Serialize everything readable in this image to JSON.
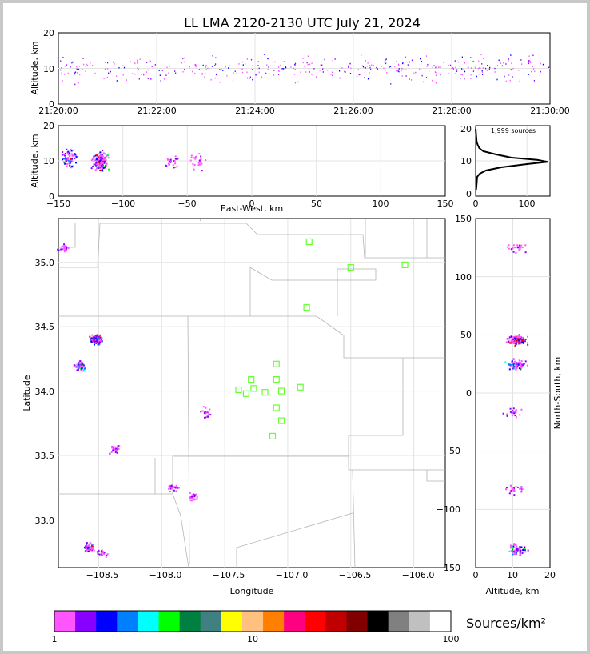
{
  "title": "LL LMA 2120-2130 UTC July 21, 2024",
  "colorbar": {
    "label": "Sources/km²",
    "tick_labels": [
      "1",
      "10",
      "100"
    ],
    "colors": [
      "#ff55ff",
      "#8800ff",
      "#0000ff",
      "#0080ff",
      "#00ffff",
      "#00ff00",
      "#008040",
      "#408080",
      "#ffff00",
      "#ffc080",
      "#ff8000",
      "#ff0080",
      "#ff0000",
      "#c00000",
      "#800000",
      "#000000",
      "#808080",
      "#c0c0c0",
      "#ffffff"
    ]
  },
  "chart_data": [
    {
      "id": "time_series",
      "type": "scatter",
      "xlabel": "",
      "ylabel": "Altitude, km",
      "x_ticks": [
        "21:20:00",
        "21:22:00",
        "21:24:00",
        "21:26:00",
        "21:28:00",
        "21:30:00"
      ],
      "y_ticks": [
        "0",
        "10",
        "20"
      ],
      "xlim": [
        "21:20:00",
        "21:30:00"
      ],
      "ylim": [
        0,
        20
      ],
      "grid": true
    },
    {
      "id": "east_west",
      "type": "heatmap",
      "xlabel": "East-West, km",
      "ylabel": "Altitude, km",
      "x_ticks": [
        "−150",
        "−100",
        "−50",
        "0",
        "50",
        "100",
        "150"
      ],
      "y_ticks": [
        "0",
        "10",
        "20"
      ],
      "xlim": [
        -150,
        150
      ],
      "ylim": [
        0,
        20
      ],
      "grid": true,
      "clusters": [
        {
          "x": -142,
          "z": 11,
          "sources": "moderate"
        },
        {
          "x": -118,
          "z": 10,
          "sources": "high"
        },
        {
          "x": -62,
          "z": 10,
          "sources": "low"
        },
        {
          "x": -42,
          "z": 10,
          "sources": "low"
        }
      ]
    },
    {
      "id": "altitude_histogram",
      "type": "line",
      "annotation": "1,999 sources",
      "x_ticks": [
        "0",
        "100"
      ],
      "y_ticks": [
        "0",
        "10",
        "20"
      ],
      "xlim": [
        0,
        145
      ],
      "ylim": [
        -1,
        21
      ],
      "profile": [
        {
          "z": 1,
          "n": 1
        },
        {
          "z": 3,
          "n": 2
        },
        {
          "z": 5,
          "n": 3
        },
        {
          "z": 6,
          "n": 8
        },
        {
          "z": 7,
          "n": 20
        },
        {
          "z": 8,
          "n": 50
        },
        {
          "z": 9,
          "n": 100
        },
        {
          "z": 9.7,
          "n": 140
        },
        {
          "z": 10.3,
          "n": 120
        },
        {
          "z": 11,
          "n": 70
        },
        {
          "z": 12,
          "n": 40
        },
        {
          "z": 13,
          "n": 15
        },
        {
          "z": 14,
          "n": 7
        },
        {
          "z": 15,
          "n": 4
        },
        {
          "z": 16,
          "n": 2
        },
        {
          "z": 18,
          "n": 1
        },
        {
          "z": 20,
          "n": 0
        }
      ]
    },
    {
      "id": "plan_view",
      "type": "scatter",
      "xlabel": "Longitude",
      "ylabel": "Latitude",
      "x_ticks": [
        "−108.5",
        "−108.0",
        "−107.5",
        "−107.0",
        "−106.5",
        "−106.0"
      ],
      "y_ticks": [
        "33.0",
        "33.5",
        "34.0",
        "34.5",
        "35.0"
      ],
      "xlim": [
        -108.82,
        -105.75
      ],
      "ylim": [
        32.63,
        35.34
      ],
      "grid": true,
      "stations": [
        {
          "lon": -106.83,
          "lat": 35.16
        },
        {
          "lon": -106.5,
          "lat": 34.96
        },
        {
          "lon": -106.07,
          "lat": 34.98
        },
        {
          "lon": -106.85,
          "lat": 34.65
        },
        {
          "lon": -107.09,
          "lat": 34.21
        },
        {
          "lon": -107.29,
          "lat": 34.09
        },
        {
          "lon": -107.09,
          "lat": 34.09
        },
        {
          "lon": -107.39,
          "lat": 34.01
        },
        {
          "lon": -107.33,
          "lat": 33.98
        },
        {
          "lon": -107.27,
          "lat": 34.02
        },
        {
          "lon": -107.18,
          "lat": 33.99
        },
        {
          "lon": -107.05,
          "lat": 34.0
        },
        {
          "lon": -106.9,
          "lat": 34.03
        },
        {
          "lon": -107.09,
          "lat": 33.87
        },
        {
          "lon": -107.05,
          "lat": 33.77
        },
        {
          "lon": -107.12,
          "lat": 33.65
        }
      ],
      "clusters": [
        {
          "lon": -108.53,
          "lat": 34.41,
          "sources": "high"
        },
        {
          "lon": -108.66,
          "lat": 34.2,
          "sources": "moderate"
        },
        {
          "lon": -108.78,
          "lat": 35.12,
          "sources": "low"
        },
        {
          "lon": -108.58,
          "lat": 32.79,
          "sources": "moderate"
        },
        {
          "lon": -108.48,
          "lat": 32.75,
          "sources": "low"
        },
        {
          "lon": -107.91,
          "lat": 33.26,
          "sources": "low"
        },
        {
          "lon": -107.76,
          "lat": 33.18,
          "sources": "low"
        },
        {
          "lon": -107.65,
          "lat": 33.84,
          "sources": "low"
        },
        {
          "lon": -108.37,
          "lat": 33.55,
          "sources": "low"
        }
      ]
    },
    {
      "id": "north_south",
      "type": "heatmap",
      "xlabel": "Altitude, km",
      "ylabel": "North-South, km",
      "x_ticks": [
        "0",
        "10",
        "20"
      ],
      "y_ticks": [
        "−150",
        "−100",
        "−50",
        "0",
        "50",
        "100",
        "150"
      ],
      "xlim": [
        0,
        20
      ],
      "ylim": [
        -150,
        150
      ],
      "grid": true,
      "clusters": [
        {
          "z": 11,
          "y": 46,
          "sources": "high"
        },
        {
          "z": 11,
          "y": 25,
          "sources": "moderate"
        },
        {
          "z": 11,
          "y": 125,
          "sources": "low"
        },
        {
          "z": 10,
          "y": -17,
          "sources": "low"
        },
        {
          "z": 10,
          "y": -82,
          "sources": "low"
        },
        {
          "z": 11,
          "y": -134,
          "sources": "moderate"
        }
      ]
    }
  ]
}
